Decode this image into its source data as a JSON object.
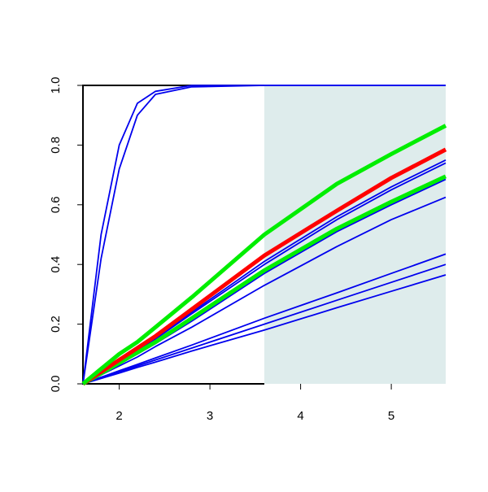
{
  "chart_data": {
    "type": "line",
    "x": [
      1.6,
      1.8,
      2.0,
      2.2,
      2.4,
      2.8,
      3.6,
      4.4,
      5.0,
      5.6
    ],
    "series": [
      {
        "color": "#0000ee",
        "values": [
          0,
          0.5,
          0.8,
          0.94,
          0.98,
          1,
          1,
          1,
          1,
          1
        ]
      },
      {
        "color": "#0000ee",
        "values": [
          0,
          0.42,
          0.72,
          0.9,
          0.97,
          0.995,
          1,
          1,
          1,
          1
        ]
      },
      {
        "color": "#0000ee",
        "values": [
          0,
          0.04,
          0.08,
          0.115,
          0.155,
          0.24,
          0.41,
          0.56,
          0.66,
          0.75
        ]
      },
      {
        "color": "#0000ee",
        "values": [
          0,
          0.035,
          0.075,
          0.11,
          0.15,
          0.235,
          0.4,
          0.55,
          0.65,
          0.74
        ]
      },
      {
        "color": "#0000ee",
        "values": [
          0,
          0.034,
          0.068,
          0.1,
          0.135,
          0.21,
          0.37,
          0.51,
          0.6,
          0.685
        ]
      },
      {
        "color": "#0000ee",
        "values": [
          0,
          0.03,
          0.06,
          0.09,
          0.125,
          0.19,
          0.33,
          0.46,
          0.55,
          0.625
        ]
      },
      {
        "color": "#0000ee",
        "values": [
          0,
          0.022,
          0.044,
          0.065,
          0.087,
          0.13,
          0.22,
          0.305,
          0.37,
          0.435
        ]
      },
      {
        "color": "#0000ee",
        "values": [
          0,
          0.02,
          0.04,
          0.06,
          0.08,
          0.12,
          0.2,
          0.28,
          0.34,
          0.4
        ]
      },
      {
        "color": "#0000ee",
        "values": [
          0,
          0.018,
          0.036,
          0.055,
          0.073,
          0.11,
          0.18,
          0.255,
          0.31,
          0.365
        ]
      },
      {
        "color": "#00ee00",
        "values": [
          0,
          0.035,
          0.07,
          0.105,
          0.14,
          0.22,
          0.38,
          0.52,
          0.61,
          0.695
        ]
      },
      {
        "color": "#ff0000",
        "values": [
          0,
          0.04,
          0.08,
          0.12,
          0.16,
          0.25,
          0.43,
          0.58,
          0.69,
          0.785
        ]
      },
      {
        "color": "#00ee00",
        "values": [
          0,
          0.05,
          0.1,
          0.14,
          0.19,
          0.29,
          0.5,
          0.67,
          0.77,
          0.865
        ]
      }
    ],
    "shaded_xrange": [
      3.6,
      5.6
    ],
    "shade_color": "#deecec",
    "xlim": [
      1.6,
      5.6
    ],
    "ylim": [
      0,
      1
    ],
    "xticks": [
      2,
      3,
      4,
      5
    ],
    "yticks": [
      {
        "value": 0,
        "label": "0.0"
      },
      0.2,
      0.4,
      0.6,
      0.8,
      {
        "value": 1,
        "label": "1.0"
      }
    ]
  }
}
